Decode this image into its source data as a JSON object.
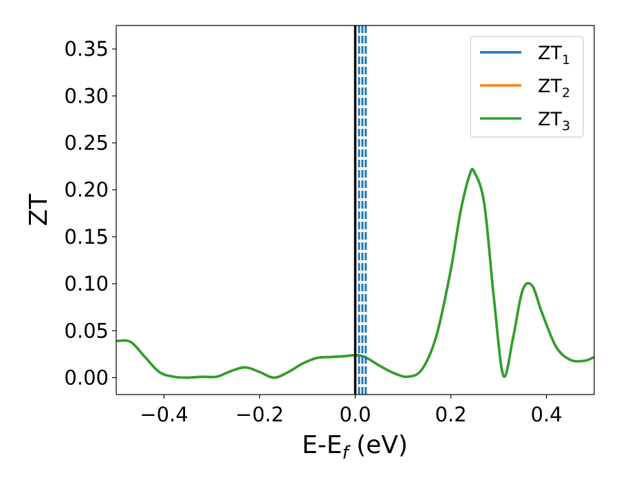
{
  "chart_data": {
    "type": "line",
    "xlabel": "E-E",
    "xlabel_sub": "f",
    "xlabel_unit": " (eV)",
    "ylabel": "ZT",
    "xlim": [
      -0.5,
      0.5
    ],
    "ylim": [
      -0.018,
      0.375
    ],
    "x_ticks": [
      -0.4,
      -0.2,
      0.0,
      0.2,
      0.4
    ],
    "x_tick_labels": [
      "−0.4",
      "−0.2",
      "0.0",
      "0.2",
      "0.4"
    ],
    "y_ticks": [
      0.0,
      0.05,
      0.1,
      0.15,
      0.2,
      0.25,
      0.3,
      0.35
    ],
    "y_tick_labels": [
      "0.00",
      "0.05",
      "0.10",
      "0.15",
      "0.20",
      "0.25",
      "0.30",
      "0.35"
    ],
    "grid": false,
    "legend_position": "top-right",
    "series": [
      {
        "name": "ZT",
        "sub": "1",
        "color": "#1f77b4",
        "x": [
          -0.5,
          -0.47,
          -0.44,
          -0.41,
          -0.38,
          -0.35,
          -0.32,
          -0.29,
          -0.26,
          -0.23,
          -0.2,
          -0.17,
          -0.14,
          -0.11,
          -0.08,
          -0.05,
          -0.02,
          0.0,
          0.02,
          0.05,
          0.08,
          0.11,
          0.14,
          0.17,
          0.2,
          0.22,
          0.24,
          0.25,
          0.27,
          0.29,
          0.31,
          0.33,
          0.35,
          0.37,
          0.39,
          0.42,
          0.45,
          0.48,
          0.5
        ],
        "y": [
          0.039,
          0.038,
          0.022,
          0.006,
          0.001,
          0.0,
          0.001,
          0.001,
          0.007,
          0.011,
          0.006,
          0.0,
          0.006,
          0.015,
          0.021,
          0.022,
          0.023,
          0.024,
          0.022,
          0.013,
          0.005,
          0.001,
          0.009,
          0.045,
          0.115,
          0.176,
          0.217,
          0.218,
          0.185,
          0.085,
          0.002,
          0.042,
          0.093,
          0.098,
          0.07,
          0.033,
          0.019,
          0.018,
          0.022
        ]
      },
      {
        "name": "ZT",
        "sub": "2",
        "color": "#ff7f0e",
        "x": [
          -0.5,
          -0.47,
          -0.44,
          -0.41,
          -0.38,
          -0.35,
          -0.32,
          -0.29,
          -0.26,
          -0.23,
          -0.2,
          -0.17,
          -0.14,
          -0.11,
          -0.08,
          -0.05,
          -0.02,
          0.0,
          0.02,
          0.05,
          0.08,
          0.11,
          0.14,
          0.17,
          0.2,
          0.22,
          0.24,
          0.25,
          0.27,
          0.29,
          0.31,
          0.33,
          0.35,
          0.37,
          0.39,
          0.42,
          0.45,
          0.48,
          0.5
        ],
        "y": [
          0.039,
          0.038,
          0.022,
          0.006,
          0.001,
          0.0,
          0.001,
          0.001,
          0.007,
          0.011,
          0.006,
          0.0,
          0.006,
          0.015,
          0.021,
          0.022,
          0.023,
          0.024,
          0.022,
          0.013,
          0.005,
          0.001,
          0.009,
          0.045,
          0.115,
          0.176,
          0.217,
          0.218,
          0.185,
          0.085,
          0.002,
          0.042,
          0.093,
          0.098,
          0.07,
          0.033,
          0.019,
          0.018,
          0.022
        ]
      },
      {
        "name": "ZT",
        "sub": "3",
        "color": "#2ca02c",
        "x": [
          -0.5,
          -0.47,
          -0.44,
          -0.41,
          -0.38,
          -0.35,
          -0.32,
          -0.29,
          -0.26,
          -0.23,
          -0.2,
          -0.17,
          -0.14,
          -0.11,
          -0.08,
          -0.05,
          -0.02,
          0.0,
          0.02,
          0.05,
          0.08,
          0.11,
          0.14,
          0.17,
          0.2,
          0.22,
          0.24,
          0.25,
          0.27,
          0.29,
          0.31,
          0.33,
          0.35,
          0.37,
          0.39,
          0.42,
          0.45,
          0.48,
          0.5
        ],
        "y": [
          0.039,
          0.038,
          0.022,
          0.006,
          0.001,
          0.0,
          0.001,
          0.001,
          0.007,
          0.011,
          0.006,
          0.0,
          0.006,
          0.015,
          0.021,
          0.022,
          0.023,
          0.024,
          0.022,
          0.013,
          0.005,
          0.001,
          0.009,
          0.045,
          0.115,
          0.176,
          0.217,
          0.218,
          0.185,
          0.085,
          0.002,
          0.042,
          0.093,
          0.098,
          0.07,
          0.033,
          0.019,
          0.018,
          0.022
        ]
      }
    ],
    "vertical_lines": [
      {
        "x": 0.0,
        "style": "solid",
        "color": "#000000"
      },
      {
        "x": 0.008,
        "style": "dashed",
        "color": "#1f77b4"
      },
      {
        "x": 0.015,
        "style": "dashed",
        "color": "#1f77b4"
      },
      {
        "x": 0.022,
        "style": "dashed",
        "color": "#1f77b4"
      }
    ]
  }
}
